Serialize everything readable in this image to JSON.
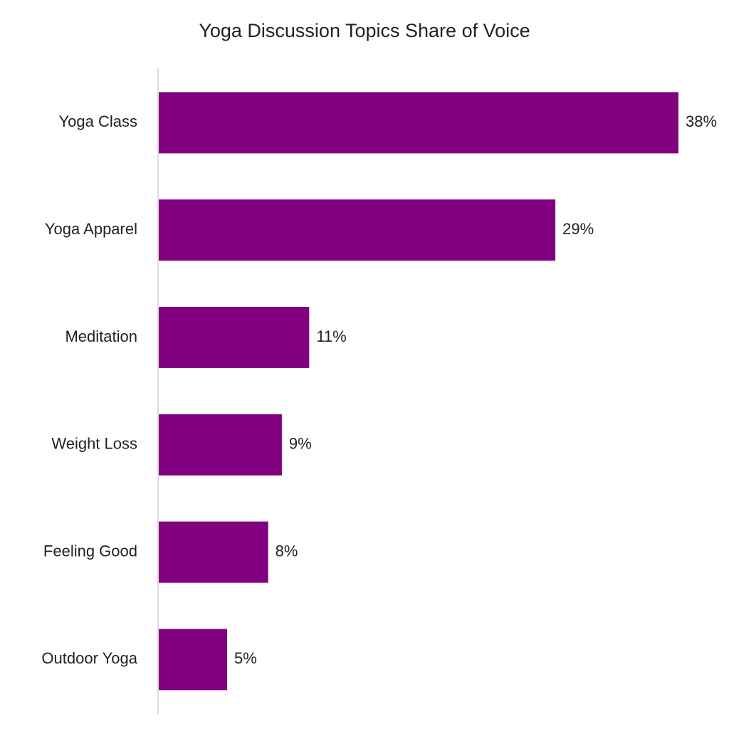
{
  "chart_data": {
    "type": "bar",
    "orientation": "horizontal",
    "title": "Yoga Discussion Topics Share of Voice",
    "categories": [
      "Yoga Class",
      "Yoga Apparel",
      "Meditation",
      "Weight Loss",
      "Feeling Good",
      "Outdoor Yoga"
    ],
    "values": [
      38,
      29,
      11,
      9,
      8,
      5
    ],
    "value_labels": [
      "38%",
      "29%",
      "11%",
      "9%",
      "8%",
      "5%"
    ],
    "color": "#800080"
  }
}
